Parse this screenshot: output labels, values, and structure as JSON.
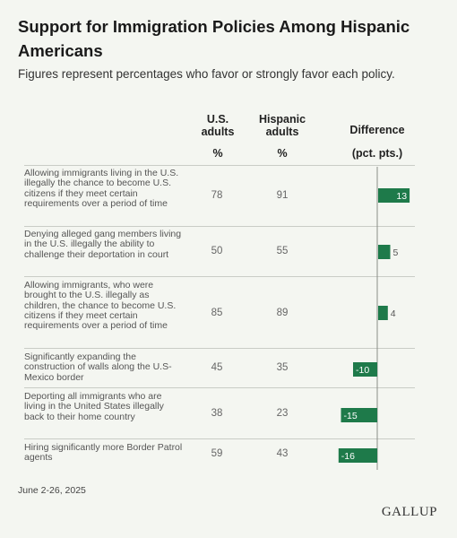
{
  "title": "Support for Immigration Policies Among Hispanic Americans",
  "subtitle": "Figures represent percentages who favor or strongly favor each policy.",
  "columns": {
    "us": "U.S. adults",
    "hisp": "Hispanic adults",
    "diff": "Difference",
    "us_unit": "%",
    "hisp_unit": "%",
    "diff_unit": "(pct. pts.)"
  },
  "rows": [
    {
      "label": "Allowing immigrants living in the U.S. illegally the chance to become U.S. citizens if they meet certain requirements over a period of time",
      "us": "78",
      "hisp": "91"
    },
    {
      "label": "Denying alleged gang members living in the U.S. illegally the ability to challenge their deportation in court",
      "us": "50",
      "hisp": "55"
    },
    {
      "label": "Allowing immigrants, who were brought to the U.S. illegally as children, the chance to become U.S. citizens if they meet certain requirements over a period of time",
      "us": "85",
      "hisp": "89"
    },
    {
      "label": "Significantly expanding the construction of walls along the U.S-Mexico border",
      "us": "45",
      "hisp": "35"
    },
    {
      "label": "Deporting all immigrants who are living in the United States illegally back to their home country",
      "us": "38",
      "hisp": "23"
    },
    {
      "label": "Hiring significantly more Border Patrol agents",
      "us": "59",
      "hisp": "43"
    }
  ],
  "footer": {
    "date": "June 2-26, 2025",
    "brand": "GALLUP"
  },
  "colors": {
    "bar": "#1e7a4a",
    "background": "#f4f6f1",
    "axis": "#8a8d87"
  },
  "chart_data": {
    "type": "bar",
    "orientation": "horizontal",
    "title": "Support for Immigration Policies Among Hispanic Americans",
    "categories": [
      "Allowing immigrants living in the U.S. illegally the chance to become U.S. citizens if they meet certain requirements over a period of time",
      "Denying alleged gang members living in the U.S. illegally the ability to challenge their deportation in court",
      "Allowing immigrants, who were brought to the U.S. illegally as children, the chance to become U.S. citizens if they meet certain requirements over a period of time",
      "Significantly expanding the construction of walls along the U.S-Mexico border",
      "Deporting all immigrants who are living in the United States illegally back to their home country",
      "Hiring significantly more Border Patrol agents"
    ],
    "series": [
      {
        "name": "Difference",
        "values": [
          13,
          5,
          4,
          -10,
          -15,
          -16
        ]
      }
    ],
    "data_labels": [
      "13",
      "5",
      "4",
      "-10",
      "-15",
      "-16"
    ],
    "grid": false
  }
}
